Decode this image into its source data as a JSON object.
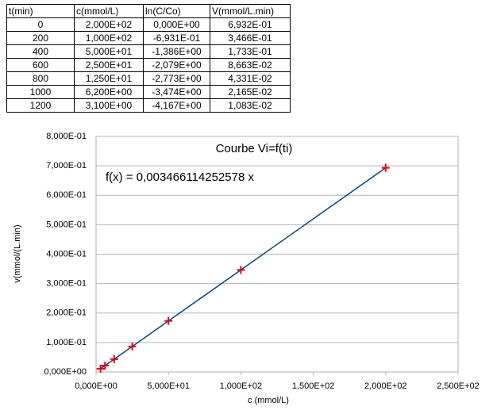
{
  "table": {
    "header": [
      "t(min)",
      "c(mmol/L)",
      "ln(C/Co)",
      "V(mmol/L.min)"
    ],
    "rows": [
      [
        "0",
        "2,000E+02",
        "0,000E+00",
        "6,932E-01"
      ],
      [
        "200",
        "1,000E+02",
        "-6,931E-01",
        "3,466E-01"
      ],
      [
        "400",
        "5,000E+01",
        "-1,386E+00",
        "1,733E-01"
      ],
      [
        "600",
        "2,500E+01",
        "-2,079E+00",
        "8,663E-02"
      ],
      [
        "800",
        "1,250E+01",
        "-2,773E+00",
        "4,331E-02"
      ],
      [
        "1000",
        "6,200E+00",
        "-3,474E+00",
        "2,165E-02"
      ],
      [
        "1200",
        "3,100E+00",
        "-4,167E+00",
        "1,083E-02"
      ]
    ]
  },
  "chart_data": {
    "type": "scatter",
    "title": "Courbe Vi=f(ti)",
    "x_label": "c (mmol/L)",
    "y_label": "v(mmol/(L.min)",
    "trendline": {
      "slope": 0.003466114252578,
      "label": "f(x) = 0,003466114252578 x",
      "color": "#004586"
    },
    "series": [
      {
        "color": "#e3001b",
        "x": [
          200,
          100,
          50,
          25,
          12.5,
          6.2,
          3.1
        ],
        "values": [
          0.6932,
          0.3466,
          0.1733,
          0.08663,
          0.04331,
          0.02165,
          0.01083
        ]
      }
    ],
    "xlim": [
      0,
      250
    ],
    "ylim": [
      0,
      0.8
    ],
    "xticks": [
      {
        "value": 0,
        "label": "0,000E+00"
      },
      {
        "value": 50,
        "label": "5,000E+01"
      },
      {
        "value": 100,
        "label": "1,000E+02"
      },
      {
        "value": 150,
        "label": "1,500E+02"
      },
      {
        "value": 200,
        "label": "2,000E+02"
      },
      {
        "value": 250,
        "label": "2,500E+02"
      }
    ],
    "yticks": [
      {
        "value": 0,
        "label": "0,000E+00"
      },
      {
        "value": 0.1,
        "label": "1,000E-01"
      },
      {
        "value": 0.2,
        "label": "2,000E-01"
      },
      {
        "value": 0.3,
        "label": "3,000E-01"
      },
      {
        "value": 0.4,
        "label": "4,000E-01"
      },
      {
        "value": 0.5,
        "label": "5,000E-01"
      },
      {
        "value": 0.6,
        "label": "6,000E-01"
      },
      {
        "value": 0.7,
        "label": "7,000E-01"
      },
      {
        "value": 0.8,
        "label": "8,000E-01"
      }
    ],
    "grid": true
  }
}
